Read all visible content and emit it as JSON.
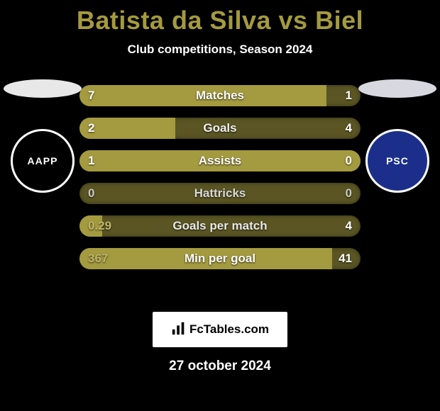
{
  "title_text": "Batista da Silva vs Biel",
  "title_color": "#a49a3f",
  "subtitle": "Club competitions, Season 2024",
  "date": "27 october 2024",
  "site_label": "FcTables.com",
  "left": {
    "ellipse_color": "#e8e8e8",
    "badge_style": "black",
    "badge_text": "AAPP"
  },
  "right": {
    "ellipse_color": "#d8d8e0",
    "badge_style": "navy",
    "badge_text": "PSC"
  },
  "bars": [
    {
      "label": "Matches",
      "left_val": "7",
      "right_val": "1",
      "fill_pct": 88,
      "fill_color": "#a49a3f",
      "rest_color": "#5a5523",
      "left_text_color": "#ffffff",
      "right_text_color": "#ffffff",
      "label_color": "#ffffff"
    },
    {
      "label": "Goals",
      "left_val": "2",
      "right_val": "4",
      "fill_pct": 34,
      "fill_color": "#a49a3f",
      "rest_color": "#5a5523",
      "left_text_color": "#ffffff",
      "right_text_color": "#ffffff",
      "label_color": "#f0f0f0"
    },
    {
      "label": "Assists",
      "left_val": "1",
      "right_val": "0",
      "fill_pct": 100,
      "fill_color": "#a49a3f",
      "rest_color": "#5a5523",
      "left_text_color": "#ffffff",
      "right_text_color": "#ffffff",
      "label_color": "#ffffff"
    },
    {
      "label": "Hattricks",
      "left_val": "0",
      "right_val": "0",
      "fill_pct": 0,
      "fill_color": "#a49a3f",
      "rest_color": "#5a5523",
      "left_text_color": "#c8c8c8",
      "right_text_color": "#c8c8c8",
      "label_color": "#d8d8d8"
    },
    {
      "label": "Goals per match",
      "left_val": "0.29",
      "right_val": "4",
      "fill_pct": 8,
      "fill_color": "#a49a3f",
      "rest_color": "#5a5523",
      "left_text_color": "#bfb567",
      "right_text_color": "#ffffff",
      "label_color": "#e8e8e8"
    },
    {
      "label": "Min per goal",
      "left_val": "367",
      "right_val": "41",
      "fill_pct": 90,
      "fill_color": "#a49a3f",
      "rest_color": "#5a5523",
      "left_text_color": "#bfb567",
      "right_text_color": "#ffffff",
      "label_color": "#ffffff"
    }
  ]
}
